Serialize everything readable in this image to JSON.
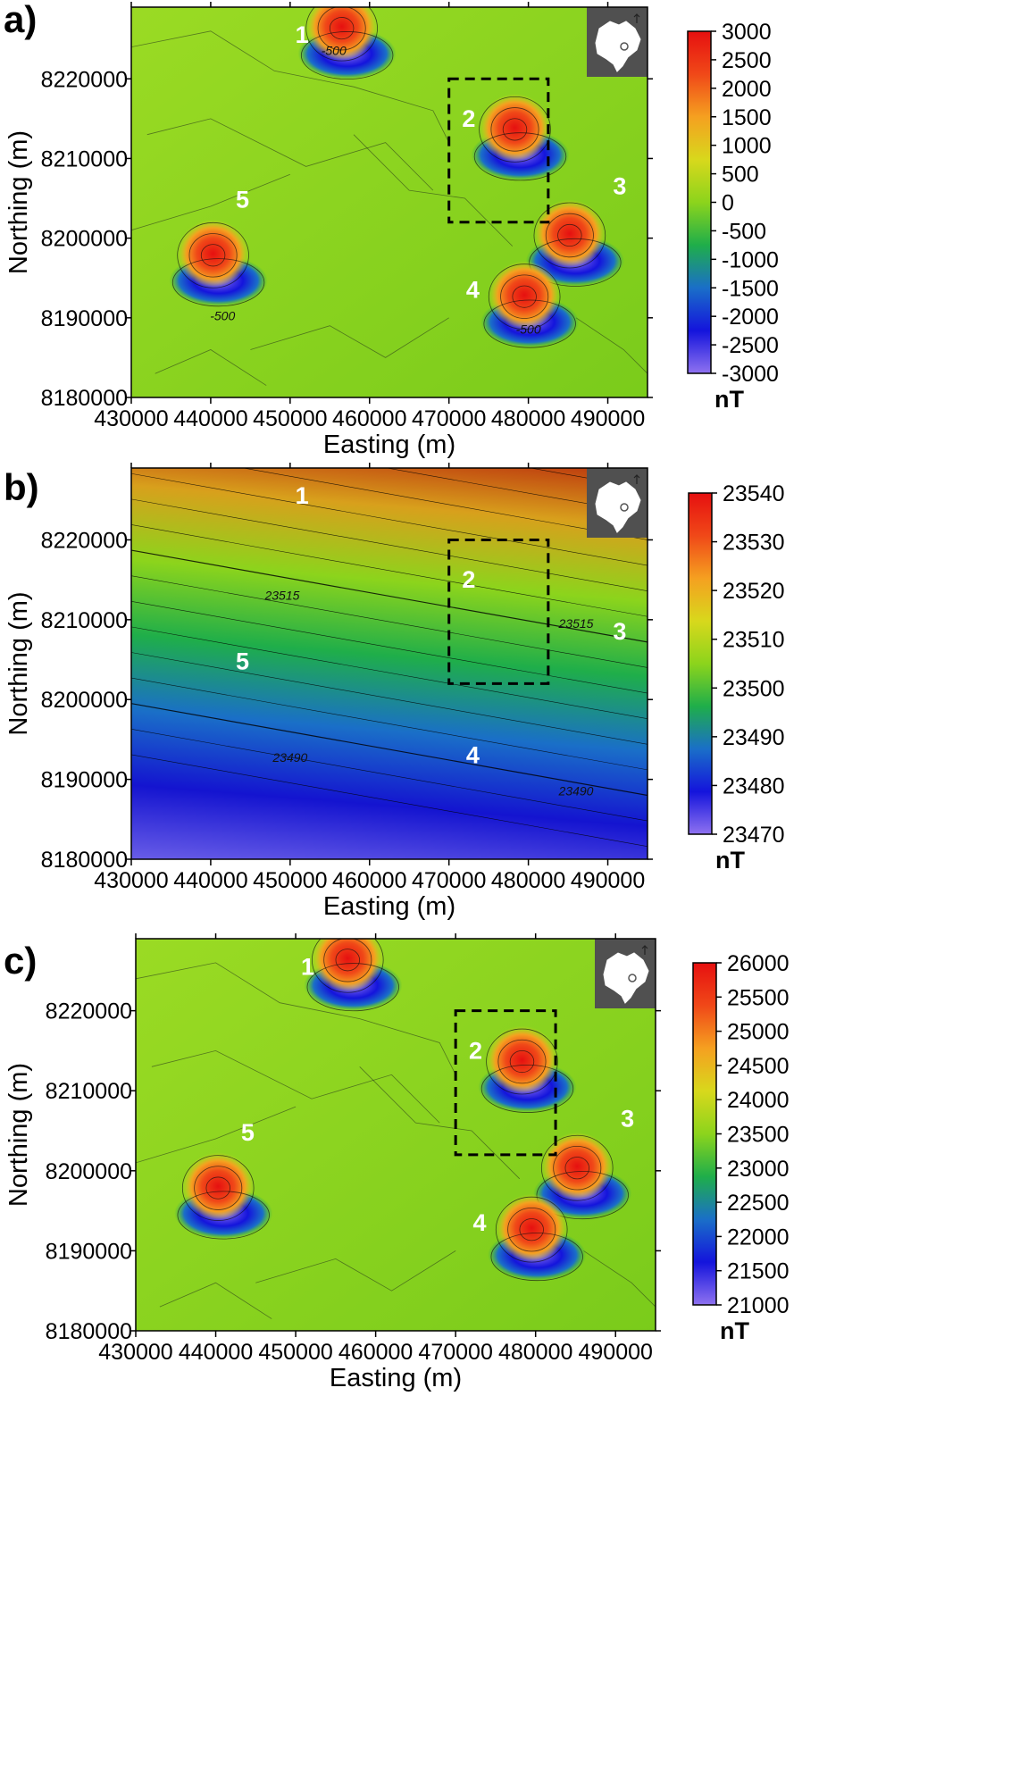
{
  "colors": {
    "colormap": [
      "#8f72f0",
      "#1414dc",
      "#1a6fc8",
      "#1fae4a",
      "#8cd41c",
      "#d8d81c",
      "#f5a020",
      "#f04818",
      "#e61010"
    ],
    "inset_bg": "#505050"
  },
  "chart_data": [
    {
      "type": "heatmap",
      "panel_label": "a)",
      "xlabel": "Easting (m)",
      "ylabel": "Northing (m)",
      "xlim": [
        430000,
        495000
      ],
      "ylim": [
        8180000,
        8229000
      ],
      "xticks": [
        430000,
        440000,
        450000,
        460000,
        470000,
        480000,
        490000
      ],
      "yticks": [
        8180000,
        8190000,
        8200000,
        8210000,
        8220000
      ],
      "colorbar": {
        "min": -3000,
        "max": 3000,
        "ticks": [
          3000,
          2500,
          2000,
          1500,
          1000,
          500,
          0,
          -500,
          -1000,
          -1500,
          -2000,
          -2500,
          -3000
        ],
        "unit": "nT"
      },
      "contour_labels": [
        {
          "text": "-500",
          "x": 455500,
          "y": 8223000
        },
        {
          "text": "-500",
          "x": 441500,
          "y": 8189700
        },
        {
          "text": "-500",
          "x": 480000,
          "y": 8188000
        }
      ],
      "zones": [
        {
          "label": "1",
          "x": 451500,
          "y": 8224500
        },
        {
          "label": "2",
          "x": 472500,
          "y": 8214000
        },
        {
          "label": "3",
          "x": 491500,
          "y": 8205500
        },
        {
          "label": "4",
          "x": 473000,
          "y": 8192500
        },
        {
          "label": "5",
          "x": 444000,
          "y": 8203800
        }
      ],
      "study_area": {
        "x": [
          470000,
          482500
        ],
        "y": [
          8202000,
          8220000
        ]
      },
      "anomalies": [
        {
          "x": 456500,
          "y": 8225500,
          "amplitude": 3000
        },
        {
          "x": 478300,
          "y": 8212800,
          "amplitude": 2600
        },
        {
          "x": 485200,
          "y": 8199500,
          "amplitude": 3000
        },
        {
          "x": 479500,
          "y": 8191800,
          "amplitude": 2600
        },
        {
          "x": 440300,
          "y": 8197000,
          "amplitude": 3000
        }
      ]
    },
    {
      "type": "heatmap",
      "panel_label": "b)",
      "xlabel": "Easting (m)",
      "ylabel": "Northing (m)",
      "xlim": [
        430000,
        495000
      ],
      "ylim": [
        8180000,
        8229000
      ],
      "xticks": [
        430000,
        440000,
        450000,
        460000,
        470000,
        480000,
        490000
      ],
      "yticks": [
        8180000,
        8190000,
        8200000,
        8210000,
        8220000
      ],
      "colorbar": {
        "min": 23470,
        "max": 23540,
        "ticks": [
          23540,
          23530,
          23520,
          23510,
          23500,
          23490,
          23480,
          23470
        ],
        "unit": "nT"
      },
      "contour_labels": [
        {
          "text": "23515",
          "x": 449000,
          "y": 8212500
        },
        {
          "text": "23515",
          "x": 486000,
          "y": 8209000
        },
        {
          "text": "23490",
          "x": 450000,
          "y": 8192200
        },
        {
          "text": "23490",
          "x": 486000,
          "y": 8188000
        }
      ],
      "zones": [
        {
          "label": "1",
          "x": 451500,
          "y": 8224500
        },
        {
          "label": "2",
          "x": 472500,
          "y": 8214000
        },
        {
          "label": "3",
          "x": 491500,
          "y": 8207500
        },
        {
          "label": "4",
          "x": 473000,
          "y": 8192000
        },
        {
          "label": "5",
          "x": 444000,
          "y": 8203800
        }
      ],
      "study_area": {
        "x": [
          470000,
          482500
        ],
        "y": [
          8202000,
          8220000
        ]
      }
    },
    {
      "type": "heatmap",
      "panel_label": "c)",
      "xlabel": "Easting (m)",
      "ylabel": "Northing (m)",
      "xlim": [
        430000,
        495000
      ],
      "ylim": [
        8180000,
        8229000
      ],
      "xticks": [
        430000,
        440000,
        450000,
        460000,
        470000,
        480000,
        490000
      ],
      "yticks": [
        8180000,
        8190000,
        8200000,
        8210000,
        8220000
      ],
      "colorbar": {
        "min": 21000,
        "max": 26000,
        "ticks": [
          26000,
          25500,
          25000,
          24500,
          24000,
          23500,
          23000,
          22500,
          22000,
          21500,
          21000
        ],
        "unit": "nT"
      },
      "contour_labels": [],
      "zones": [
        {
          "label": "1",
          "x": 451500,
          "y": 8224500
        },
        {
          "label": "2",
          "x": 472500,
          "y": 8214000
        },
        {
          "label": "3",
          "x": 491500,
          "y": 8205500
        },
        {
          "label": "4",
          "x": 473000,
          "y": 8192500
        },
        {
          "label": "5",
          "x": 444000,
          "y": 8203800
        }
      ],
      "study_area": {
        "x": [
          470000,
          482500
        ],
        "y": [
          8202000,
          8220000
        ]
      },
      "anomalies": [
        {
          "x": 456500,
          "y": 8225500,
          "amplitude": 2500
        },
        {
          "x": 478300,
          "y": 8212800,
          "amplitude": 2200
        },
        {
          "x": 485200,
          "y": 8199500,
          "amplitude": 2500
        },
        {
          "x": 479500,
          "y": 8191800,
          "amplitude": 2200
        },
        {
          "x": 440300,
          "y": 8197000,
          "amplitude": 2500
        }
      ]
    }
  ]
}
